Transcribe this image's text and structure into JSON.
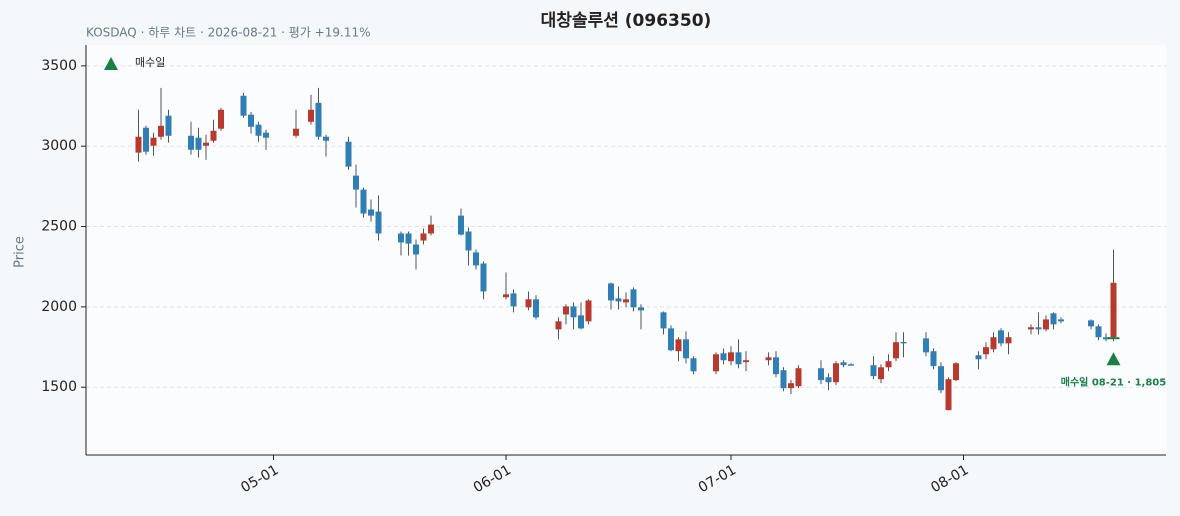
{
  "chart_data": {
    "type": "candlestick",
    "title": "대창솔루션 (096350)",
    "subtitle": "KOSDAQ · 하루 차트 · 2026-08-21 · 평가 +19.11%",
    "y_label": "Price",
    "up_color": "#b83a2e",
    "down_color": "#2f7fb5",
    "wick_color": "#555555",
    "grid": true,
    "xlim": [
      "04-06",
      "08-28"
    ],
    "xticks": [
      "05-01",
      "06-01",
      "07-01",
      "08-01"
    ],
    "ylim": [
      1078,
      3630
    ],
    "yticks": [
      1500,
      2000,
      2500,
      3000,
      3500
    ],
    "x": [
      "04-13",
      "04-14",
      "04-15",
      "04-16",
      "04-17",
      "04-20",
      "04-21",
      "04-22",
      "04-23",
      "04-24",
      "04-27",
      "04-28",
      "04-29",
      "04-30",
      "05-04",
      "05-06",
      "05-07",
      "05-08",
      "05-11",
      "05-12",
      "05-13",
      "05-14",
      "05-15",
      "05-18",
      "05-19",
      "05-20",
      "05-21",
      "05-22",
      "05-26",
      "05-27",
      "05-28",
      "05-29",
      "06-01",
      "06-02",
      "06-04",
      "06-05",
      "06-08",
      "06-09",
      "06-10",
      "06-11",
      "06-12",
      "06-15",
      "06-16",
      "06-17",
      "06-18",
      "06-19",
      "06-22",
      "06-23",
      "06-24",
      "06-25",
      "06-26",
      "06-29",
      "06-30",
      "07-01",
      "07-02",
      "07-03",
      "07-06",
      "07-07",
      "07-08",
      "07-09",
      "07-10",
      "07-13",
      "07-14",
      "07-15",
      "07-16",
      "07-17",
      "07-20",
      "07-21",
      "07-22",
      "07-23",
      "07-24",
      "07-27",
      "07-28",
      "07-29",
      "07-30",
      "07-31",
      "08-03",
      "08-04",
      "08-05",
      "08-06",
      "08-07",
      "08-10",
      "08-11",
      "08-12",
      "08-13",
      "08-14",
      "08-18",
      "08-19",
      "08-20",
      "08-21"
    ],
    "open": [
      2960,
      3115,
      3003,
      3059,
      3190,
      3065,
      3053,
      3003,
      3034,
      3109,
      3314,
      3196,
      3134,
      3084,
      3065,
      3152,
      3270,
      3059,
      3028,
      2817,
      2730,
      2606,
      2593,
      2457,
      2457,
      2388,
      2413,
      2457,
      2568,
      2469,
      2339,
      2270,
      2060,
      2084,
      1997,
      2047,
      1860,
      1953,
      2003,
      1947,
      1910,
      2146,
      2053,
      2028,
      2109,
      1997,
      1966,
      1866,
      1724,
      1798,
      1680,
      1599,
      1711,
      1662,
      1717,
      1656,
      1668,
      1686,
      1606,
      1494,
      1506,
      1618,
      1562,
      1531,
      1655,
      1643,
      1637,
      1550,
      1624,
      1680,
      1782,
      1804,
      1724,
      1631,
      1357,
      1544,
      1699,
      1705,
      1736,
      1854,
      1773,
      1860,
      1873,
      1860,
      1960,
      1922,
      1916,
      1879,
      1811,
      1811
    ],
    "high": [
      3227,
      3127,
      3084,
      3363,
      3227,
      3152,
      3115,
      3071,
      3165,
      3239,
      3332,
      3214,
      3152,
      3103,
      3227,
      3320,
      3363,
      3071,
      3059,
      2885,
      2742,
      2668,
      2693,
      2469,
      2469,
      2419,
      2488,
      2568,
      2612,
      2494,
      2357,
      2283,
      2214,
      2109,
      2096,
      2072,
      1935,
      2016,
      2028,
      2028,
      2047,
      2152,
      2127,
      2090,
      2121,
      2016,
      1972,
      1885,
      1811,
      1848,
      1693,
      1717,
      1742,
      1755,
      1798,
      1724,
      1717,
      1724,
      1624,
      1544,
      1637,
      1668,
      1587,
      1662,
      1668,
      1649,
      1693,
      1643,
      1705,
      1842,
      1842,
      1842,
      1742,
      1655,
      1562,
      1655,
      1724,
      1780,
      1842,
      1867,
      1842,
      1891,
      1966,
      1947,
      1966,
      1935,
      1922,
      1891,
      1836,
      2357
    ],
    "low": [
      2904,
      2947,
      2941,
      3040,
      3022,
      2947,
      2929,
      2916,
      3022,
      3096,
      3177,
      3078,
      3028,
      2978,
      3053,
      3134,
      3040,
      2935,
      2854,
      2618,
      2556,
      2531,
      2413,
      2320,
      2320,
      2233,
      2388,
      2444,
      2444,
      2258,
      2233,
      2047,
      2047,
      1966,
      1979,
      1922,
      1798,
      1891,
      1860,
      1860,
      1891,
      1984,
      1984,
      1997,
      1972,
      1860,
      1829,
      1724,
      1662,
      1649,
      1581,
      1581,
      1643,
      1637,
      1618,
      1600,
      1637,
      1562,
      1475,
      1457,
      1494,
      1519,
      1481,
      1513,
      1624,
      1637,
      1550,
      1525,
      1600,
      1662,
      1686,
      1693,
      1612,
      1463,
      1357,
      1538,
      1612,
      1674,
      1717,
      1755,
      1705,
      1829,
      1829,
      1848,
      1860,
      1898,
      1860,
      1792,
      1786,
      1786
    ],
    "close": [
      3059,
      2966,
      3053,
      3127,
      3065,
      2978,
      2978,
      3022,
      3096,
      3227,
      3190,
      3121,
      3065,
      3053,
      3109,
      3227,
      3059,
      3034,
      2873,
      2730,
      2581,
      2568,
      2457,
      2401,
      2394,
      2326,
      2457,
      2512,
      2450,
      2351,
      2258,
      2096,
      2078,
      2003,
      2047,
      1935,
      1910,
      2003,
      1935,
      1866,
      2040,
      2040,
      2034,
      2047,
      1997,
      1978,
      1866,
      1730,
      1798,
      1680,
      1599,
      1705,
      1668,
      1717,
      1643,
      1668,
      1686,
      1581,
      1494,
      1525,
      1618,
      1544,
      1531,
      1649,
      1637,
      1640,
      1569,
      1624,
      1662,
      1780,
      1780,
      1717,
      1631,
      1481,
      1550,
      1649,
      1674,
      1749,
      1811,
      1773,
      1811,
      1873,
      1860,
      1922,
      1891,
      1910,
      1879,
      1811,
      1798,
      2150
    ],
    "buy": {
      "name": "매수일",
      "date": "08-21",
      "price": 1805,
      "label": "매수일 08-21 · 1,805",
      "color": "#1a7f45"
    }
  }
}
